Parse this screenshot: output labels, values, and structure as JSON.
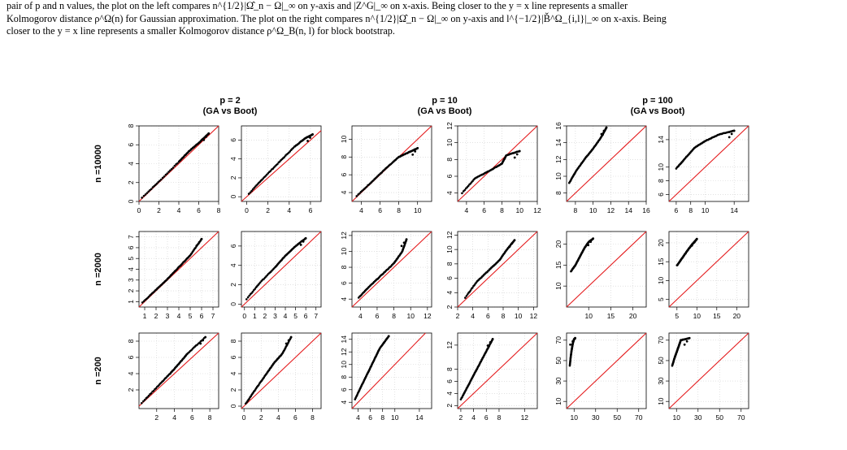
{
  "caption": {
    "line1": "pair of p and n values, the plot on the left compares n^{1/2}|Ω̂_n − Ω|_∞ on y-axis and |Z^G|_∞ on x-axis. Being closer to the y = x line represents a smaller",
    "line2": "Kolmogorov distance ρ^Ω(n) for Gaussian approximation. The plot on the right compares n^{1/2}|Ω̂_n − Ω|_∞ on y-axis and l^{−1/2}|B̌^Ω_{i,l}|_∞ on x-axis. Being",
    "line3": "closer to the y = x line represents a smaller Kolmogorov distance ρ^Ω_B(n, l) for block bootstrap."
  },
  "column_headers": [
    {
      "p": "p = 2",
      "sub": "(GA vs Boot)"
    },
    {
      "p": "p = 10",
      "sub": "(GA vs Boot)"
    },
    {
      "p": "p = 100",
      "sub": "(GA vs Boot)"
    }
  ],
  "row_labels": [
    "n =10000",
    "n =2000",
    "n =200"
  ],
  "colors": {
    "points": "#000000",
    "reference_line": "#e41a1c",
    "grid": "#cfcfcf"
  },
  "chart_data": {
    "type": "scatter",
    "description_of_layout": "3x6 grid of QQ plots: rows n, columns p with GA and Boot panels",
    "panels": [
      {
        "row": 0,
        "col": 0,
        "xlim": [
          0,
          8
        ],
        "ylim": [
          0,
          8
        ],
        "xticks": [
          0,
          2,
          4,
          6,
          8
        ],
        "yticks": [
          0,
          2,
          4,
          6,
          8
        ],
        "qq": [
          [
            0.3,
            0.4
          ],
          [
            2,
            2.1
          ],
          [
            4,
            4.2
          ],
          [
            5,
            5.3
          ],
          [
            6,
            6.2
          ],
          [
            7,
            7.2
          ]
        ]
      },
      {
        "row": 0,
        "col": 1,
        "xlim": [
          -0.5,
          7
        ],
        "ylim": [
          -0.5,
          7.5
        ],
        "xticks": [
          0,
          2,
          4,
          6
        ],
        "yticks": [
          0,
          2,
          4,
          6
        ],
        "qq": [
          [
            0.2,
            0.3
          ],
          [
            1.5,
            1.9
          ],
          [
            3,
            3.6
          ],
          [
            4.5,
            5.3
          ],
          [
            5.5,
            6.2
          ],
          [
            6.2,
            6.6
          ]
        ]
      },
      {
        "row": 0,
        "col": 2,
        "xlim": [
          3,
          11.5
        ],
        "ylim": [
          3,
          11.5
        ],
        "xticks": [
          4,
          6,
          8,
          10
        ],
        "yticks": [
          4,
          6,
          8,
          10
        ],
        "qq": [
          [
            3.5,
            3.6
          ],
          [
            5,
            5.1
          ],
          [
            6.5,
            6.6
          ],
          [
            8,
            8.0
          ],
          [
            9,
            8.5
          ],
          [
            10,
            9
          ]
        ]
      },
      {
        "row": 0,
        "col": 3,
        "xlim": [
          3,
          12
        ],
        "ylim": [
          3,
          12
        ],
        "xticks": [
          4,
          6,
          8,
          10,
          12
        ],
        "yticks": [
          4,
          6,
          8,
          10,
          12
        ],
        "qq": [
          [
            3.5,
            4
          ],
          [
            5,
            5.8
          ],
          [
            6.5,
            6.6
          ],
          [
            8,
            7.5
          ],
          [
            8.5,
            8.5
          ],
          [
            10,
            9
          ]
        ]
      },
      {
        "row": 0,
        "col": 4,
        "xlim": [
          7,
          16
        ],
        "ylim": [
          7,
          16
        ],
        "xticks": [
          8,
          10,
          12,
          14,
          16
        ],
        "yticks": [
          8,
          10,
          12,
          14,
          16
        ],
        "qq": [
          [
            7.3,
            9.2
          ],
          [
            8,
            10.5
          ],
          [
            9,
            12
          ],
          [
            10,
            13.3
          ],
          [
            11,
            14.8
          ],
          [
            11.5,
            15.8
          ]
        ]
      },
      {
        "row": 0,
        "col": 5,
        "xlim": [
          5,
          16
        ],
        "ylim": [
          5,
          16
        ],
        "xticks": [
          6,
          8,
          10,
          14
        ],
        "yticks": [
          6,
          8,
          10,
          14
        ],
        "qq": [
          [
            6,
            9.8
          ],
          [
            7,
            11
          ],
          [
            8.5,
            12.8
          ],
          [
            10,
            13.8
          ],
          [
            12,
            14.8
          ],
          [
            14,
            15.3
          ]
        ]
      },
      {
        "row": 1,
        "col": 0,
        "xlim": [
          0.5,
          7.5
        ],
        "ylim": [
          0.5,
          7.5
        ],
        "xticks": [
          1,
          2,
          3,
          4,
          5,
          6,
          7
        ],
        "yticks": [
          1,
          2,
          3,
          4,
          5,
          6,
          7
        ],
        "qq": [
          [
            0.8,
            0.9
          ],
          [
            2,
            2.1
          ],
          [
            3,
            3.1
          ],
          [
            4,
            4.2
          ],
          [
            5,
            5.3
          ],
          [
            6,
            6.8
          ]
        ]
      },
      {
        "row": 1,
        "col": 1,
        "xlim": [
          -0.3,
          7.5
        ],
        "ylim": [
          -0.3,
          7.5
        ],
        "xticks": [
          0,
          1,
          2,
          3,
          4,
          5,
          6,
          7
        ],
        "yticks": [
          0,
          2,
          4,
          6
        ],
        "qq": [
          [
            0.2,
            0.5
          ],
          [
            1.5,
            2.2
          ],
          [
            3,
            3.8
          ],
          [
            4,
            5
          ],
          [
            5,
            6
          ],
          [
            6,
            6.8
          ]
        ]
      },
      {
        "row": 1,
        "col": 2,
        "xlim": [
          3,
          12.5
        ],
        "ylim": [
          3,
          12.5
        ],
        "xticks": [
          4,
          6,
          8,
          10,
          12
        ],
        "yticks": [
          4,
          6,
          8,
          10,
          12
        ],
        "qq": [
          [
            3.8,
            4.2
          ],
          [
            5,
            5.5
          ],
          [
            6.5,
            7
          ],
          [
            8,
            8.5
          ],
          [
            9,
            10
          ],
          [
            9.5,
            11.5
          ]
        ]
      },
      {
        "row": 1,
        "col": 3,
        "xlim": [
          2,
          12.5
        ],
        "ylim": [
          2,
          12.5
        ],
        "xticks": [
          2,
          4,
          6,
          8,
          10,
          12
        ],
        "yticks": [
          2,
          4,
          6,
          8,
          10,
          12
        ],
        "qq": [
          [
            3,
            3.3
          ],
          [
            4.5,
            5.5
          ],
          [
            6,
            7
          ],
          [
            7.5,
            8.5
          ],
          [
            8.5,
            10
          ],
          [
            9.5,
            11.3
          ]
        ]
      },
      {
        "row": 1,
        "col": 4,
        "xlim": [
          5,
          23
        ],
        "ylim": [
          5,
          23
        ],
        "xticks": [
          10,
          15,
          20
        ],
        "yticks": [
          10,
          15,
          20
        ],
        "qq": [
          [
            6,
            13.5
          ],
          [
            7,
            15
          ],
          [
            8,
            17
          ],
          [
            9,
            19
          ],
          [
            10,
            20.5
          ],
          [
            11,
            21.3
          ]
        ]
      },
      {
        "row": 1,
        "col": 5,
        "xlim": [
          3,
          23
        ],
        "ylim": [
          3,
          23
        ],
        "xticks": [
          5,
          10,
          15,
          20
        ],
        "yticks": [
          5,
          10,
          15,
          20
        ],
        "qq": [
          [
            5,
            14
          ],
          [
            6,
            15.5
          ],
          [
            7,
            17
          ],
          [
            8,
            18.5
          ],
          [
            9,
            19.8
          ],
          [
            10,
            21
          ]
        ]
      },
      {
        "row": 2,
        "col": 0,
        "xlim": [
          0,
          9
        ],
        "ylim": [
          -0.3,
          9
        ],
        "xticks": [
          2,
          4,
          6,
          8
        ],
        "yticks": [
          2,
          4,
          6,
          8
        ],
        "qq": [
          [
            0.3,
            0.4
          ],
          [
            2,
            2.3
          ],
          [
            3.5,
            4
          ],
          [
            4.5,
            5.2
          ],
          [
            5.5,
            6.5
          ],
          [
            7.5,
            8.5
          ]
        ]
      },
      {
        "row": 2,
        "col": 1,
        "xlim": [
          -0.3,
          9
        ],
        "ylim": [
          -0.3,
          9
        ],
        "xticks": [
          0,
          2,
          4,
          6,
          8
        ],
        "yticks": [
          0,
          2,
          4,
          6,
          8
        ],
        "qq": [
          [
            0.2,
            0.3
          ],
          [
            1.3,
            2
          ],
          [
            2.5,
            3.8
          ],
          [
            3.5,
            5.3
          ],
          [
            4.5,
            6.5
          ],
          [
            5.5,
            8.5
          ]
        ]
      },
      {
        "row": 2,
        "col": 2,
        "xlim": [
          3,
          16
        ],
        "ylim": [
          3,
          15
        ],
        "xticks": [
          4,
          6,
          8,
          10,
          14
        ],
        "yticks": [
          4,
          6,
          8,
          10,
          12,
          14
        ],
        "qq": [
          [
            3.5,
            4.5
          ],
          [
            4.5,
            6.5
          ],
          [
            5.5,
            8.5
          ],
          [
            6.5,
            10.5
          ],
          [
            7.5,
            12.5
          ],
          [
            9,
            14.5
          ]
        ]
      },
      {
        "row": 2,
        "col": 3,
        "xlim": [
          1.5,
          14
        ],
        "ylim": [
          1.5,
          14
        ],
        "xticks": [
          2,
          4,
          6,
          8,
          12
        ],
        "yticks": [
          2,
          4,
          6,
          8,
          12
        ],
        "qq": [
          [
            2,
            3
          ],
          [
            3,
            5
          ],
          [
            4,
            7
          ],
          [
            5,
            9
          ],
          [
            6,
            11
          ],
          [
            7,
            13
          ]
        ]
      },
      {
        "row": 2,
        "col": 4,
        "xlim": [
          3,
          77
        ],
        "ylim": [
          3,
          77
        ],
        "xticks": [
          10,
          30,
          50,
          70
        ],
        "yticks": [
          10,
          30,
          50,
          70
        ],
        "qq": [
          [
            6,
            45
          ],
          [
            7,
            55
          ],
          [
            8,
            62
          ],
          [
            9,
            68
          ],
          [
            10,
            71
          ],
          [
            11,
            72
          ]
        ]
      },
      {
        "row": 2,
        "col": 5,
        "xlim": [
          3,
          77
        ],
        "ylim": [
          3,
          77
        ],
        "xticks": [
          10,
          30,
          50,
          70
        ],
        "yticks": [
          10,
          30,
          50,
          70
        ],
        "qq": [
          [
            6,
            45
          ],
          [
            8,
            52
          ],
          [
            10,
            58
          ],
          [
            12,
            64
          ],
          [
            14,
            70
          ],
          [
            22,
            72
          ]
        ]
      }
    ]
  }
}
